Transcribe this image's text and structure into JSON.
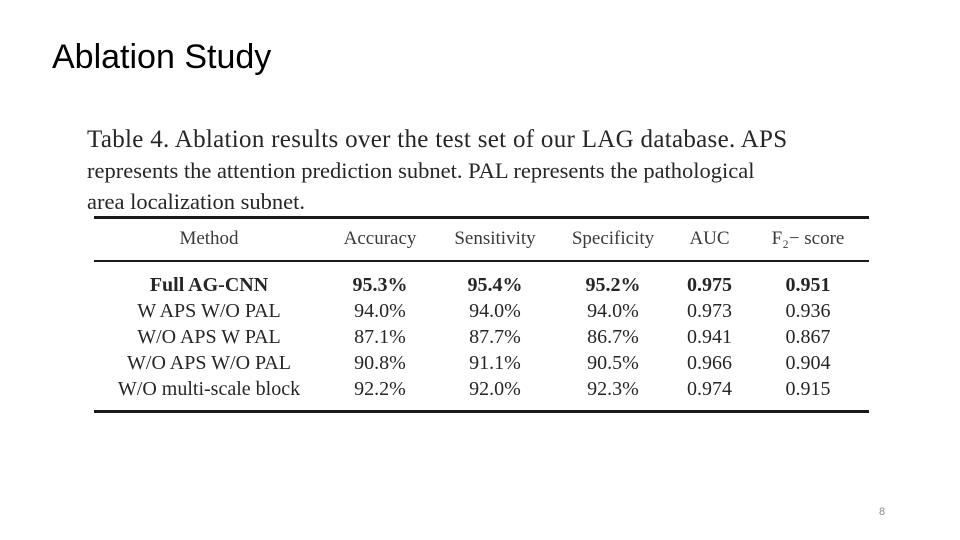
{
  "slide": {
    "title": "Ablation Study",
    "page_number": "8"
  },
  "caption": {
    "lines": [
      "Table 4. Ablation results over the test set of our LAG database.  APS",
      "represents the attention prediction subnet. PAL represents the pathological",
      "area localization subnet."
    ]
  },
  "table": {
    "headers": [
      "Method",
      "Accuracy",
      "Sensitivity",
      "Specificity",
      "AUC",
      "F₂− score"
    ],
    "rows": [
      [
        "Full AG-CNN",
        "95.3%",
        "95.4%",
        "95.2%",
        "0.975",
        "0.951"
      ],
      [
        "W APS W/O PAL",
        "94.0%",
        "94.0%",
        "94.0%",
        "0.973",
        "0.936"
      ],
      [
        "W/O APS W PAL",
        "87.1%",
        "87.7%",
        "86.7%",
        "0.941",
        "0.867"
      ],
      [
        "W/O APS W/O PAL",
        "90.8%",
        "91.1%",
        "90.5%",
        "0.966",
        "0.904"
      ],
      [
        "W/O multi-scale block",
        "92.2%",
        "92.0%",
        "92.3%",
        "0.974",
        "0.915"
      ]
    ]
  }
}
